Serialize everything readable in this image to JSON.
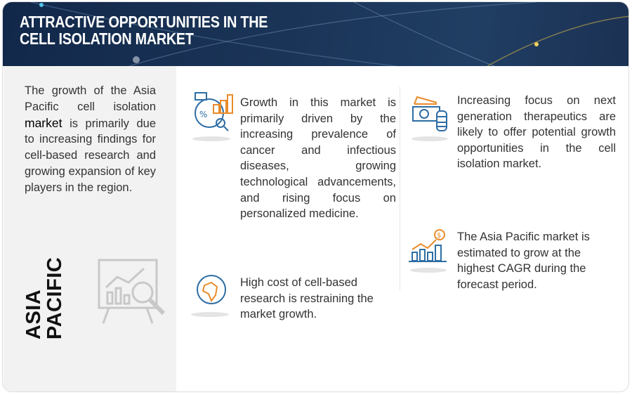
{
  "header": {
    "title_line1": "ATTRACTIVE OPPORTUNITIES IN THE",
    "title_line2": "CELL ISOLATION MARKET"
  },
  "left_panel": {
    "text_before": "The growth of the Asia Pacific cell isolation",
    "text_highlight": "market",
    "text_after": "is primarily due to increasing findings for cell-based research and growing expansion of key players in the region.",
    "region_line1": "ASIA",
    "region_line2": "PACIFIC",
    "icon": "presentation-analytics-icon"
  },
  "points": [
    {
      "icon": "market-analysis-icon",
      "text": "Growth in this market is primarily driven by the increasing prevalence of cancer and infectious diseases, growing technological advancements, and rising focus on personalized medicine."
    },
    {
      "icon": "globe-africa-icon",
      "text": "High cost of cell-based research is restraining the market growth."
    },
    {
      "icon": "money-coins-icon",
      "text": "Increasing focus on next generation therapeutics are likely to offer potential growth opportunities in the cell isolation market."
    },
    {
      "icon": "growth-chart-dollar-icon",
      "text": "The Asia Pacific market is estimated to grow at the highest CAGR during the forecast period."
    }
  ],
  "colors": {
    "header": "#1a3457",
    "blue": "#2e6da4",
    "orange": "#e98b2a",
    "panel": "#f2f2f2"
  }
}
